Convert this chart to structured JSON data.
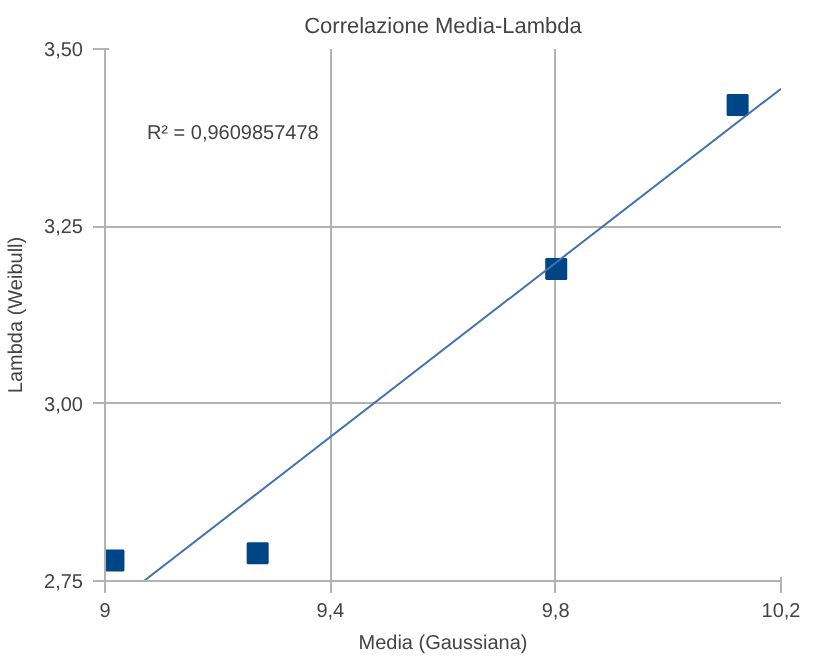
{
  "chart_data": {
    "type": "scatter",
    "title": "Correlazione Media-Lambda",
    "xlabel": "Media (Gaussiana)",
    "ylabel": "Lambda (Weibull)",
    "series": [
      {
        "color": "#004586",
        "x": [
          9.015,
          9.271,
          9.801,
          10.123
        ],
        "values": [
          2.779,
          2.789,
          3.19,
          3.421
        ],
        "marker": "square"
      },
      {
        "type": "line",
        "color": "#3f72af",
        "x": [
          9.069,
          10.2
        ],
        "values": [
          2.75,
          3.444
        ],
        "line_style": "solid"
      }
    ],
    "annotations": [
      "R² = 0,9609857478"
    ],
    "xlim": [
      9,
      10.2
    ],
    "xticks": [
      9,
      {
        "value": 9.4,
        "label": "9,4"
      },
      {
        "value": 9.8,
        "label": "9,8"
      },
      {
        "value": 10.2,
        "label": "10,2"
      }
    ],
    "ylim": [
      2.75,
      3.5
    ],
    "yticks": [
      {
        "value": 2.75,
        "label": "2,75"
      },
      {
        "value": 3.0,
        "label": "3,00"
      },
      {
        "value": 3.25,
        "label": "3,25"
      },
      {
        "value": 3.5,
        "label": "3,50"
      }
    ],
    "grid": true
  }
}
